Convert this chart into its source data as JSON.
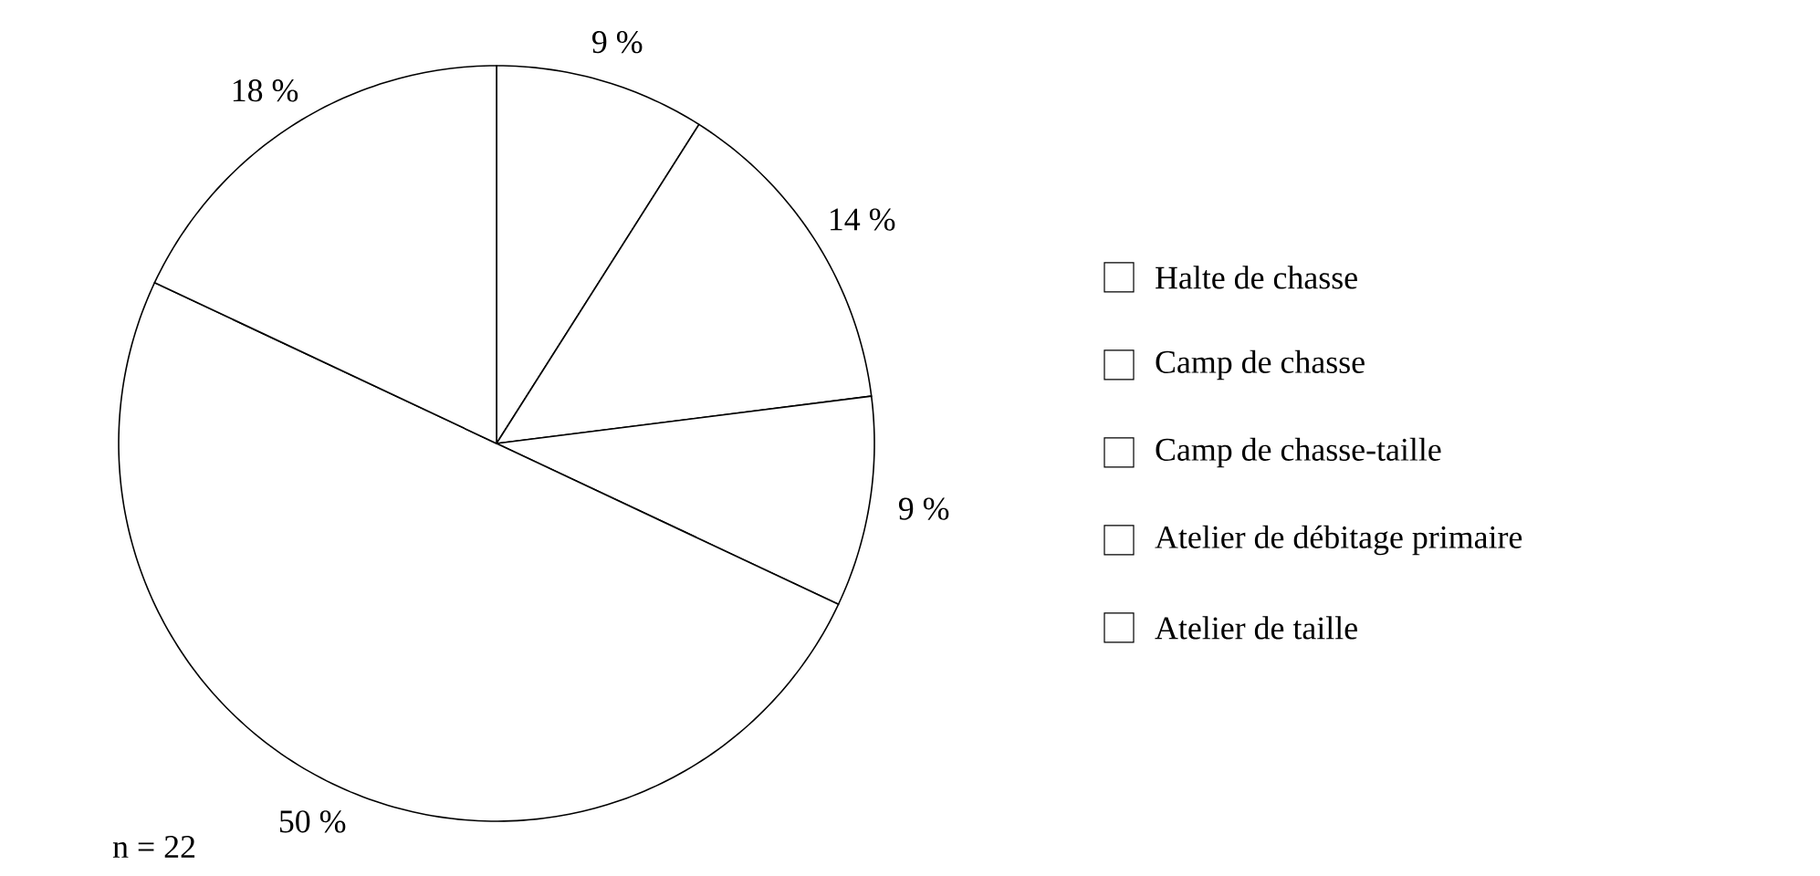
{
  "chart_data": {
    "type": "pie",
    "categories": [
      "Halte de chasse",
      "Camp de chasse",
      "Camp de chasse-taille",
      "Atelier de débitage primaire",
      "Atelier de taille"
    ],
    "values": [
      9,
      14,
      9,
      50,
      18
    ],
    "value_labels": [
      "9 %",
      "14 %",
      "9 %",
      "50 %",
      "18 %"
    ],
    "colors": [
      "#ffffff",
      "#ffffff",
      "#ffffff",
      "#ffffff",
      "#ffffff"
    ],
    "legend": "right",
    "annotations": [
      "n = 22"
    ]
  }
}
